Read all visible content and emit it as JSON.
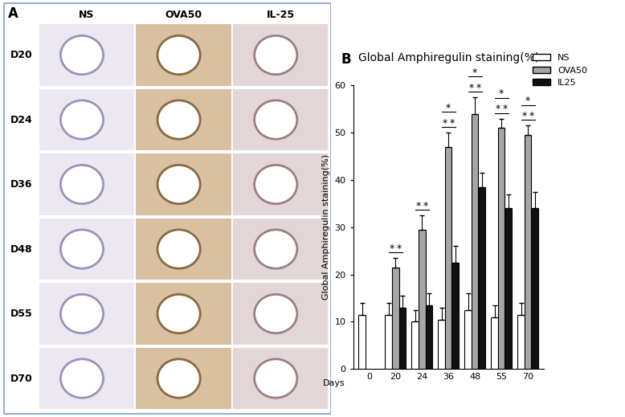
{
  "panel_a": {
    "label": "A",
    "columns": [
      "NS",
      "OVA50",
      "IL-25"
    ],
    "rows": [
      "D20",
      "D24",
      "D36",
      "D48",
      "D55",
      "D70"
    ]
  },
  "chart_data": {
    "type": "bar",
    "panel_label": "B",
    "title": "Global Amphiregulin staining(%)",
    "y_label": "Global Amphiregulin staining(%)",
    "x_label": "Days",
    "categories": [
      "0",
      "20",
      "24",
      "36",
      "48",
      "55",
      "70"
    ],
    "series": [
      {
        "name": "NS",
        "color": "#ffffff",
        "values": [
          11.5,
          11.5,
          10,
          10.5,
          12.5,
          11,
          11.5
        ],
        "errors": [
          2.5,
          2.5,
          2.5,
          2.5,
          3.5,
          2.5,
          2.5
        ]
      },
      {
        "name": "OVA50",
        "color": "#a6a6a6",
        "values": [
          null,
          21.5,
          29.5,
          47,
          54,
          51,
          49.5
        ],
        "errors": [
          null,
          2,
          3,
          3,
          3.5,
          2,
          2
        ]
      },
      {
        "name": "IL25",
        "color": "#111111",
        "values": [
          null,
          13,
          13.5,
          22.5,
          38.5,
          34,
          34
        ],
        "errors": [
          null,
          2.5,
          2.5,
          3.5,
          3,
          3,
          3.5
        ]
      }
    ],
    "annotations": [
      {
        "text": "*",
        "category": "20",
        "between": [
          "NS",
          "OVA50"
        ]
      },
      {
        "text": "*",
        "category": "20",
        "between": [
          "OVA50",
          "IL25"
        ]
      },
      {
        "text": "*",
        "category": "24",
        "between": [
          "NS",
          "OVA50"
        ]
      },
      {
        "text": "*",
        "category": "24",
        "between": [
          "OVA50",
          "IL25"
        ]
      },
      {
        "text": "*",
        "category": "36",
        "between": [
          "NS",
          "OVA50"
        ]
      },
      {
        "text": "*",
        "category": "36",
        "between": [
          "OVA50",
          "IL25"
        ]
      },
      {
        "text": "*",
        "category": "36",
        "between": [
          "NS",
          "IL25"
        ]
      },
      {
        "text": "*",
        "category": "48",
        "between": [
          "NS",
          "OVA50"
        ]
      },
      {
        "text": "*",
        "category": "48",
        "between": [
          "OVA50",
          "IL25"
        ]
      },
      {
        "text": "*",
        "category": "48",
        "between": [
          "NS",
          "IL25"
        ]
      },
      {
        "text": "*",
        "category": "55",
        "between": [
          "NS",
          "OVA50"
        ]
      },
      {
        "text": "*",
        "category": "55",
        "between": [
          "OVA50",
          "IL25"
        ]
      },
      {
        "text": "*",
        "category": "55",
        "between": [
          "NS",
          "IL25"
        ]
      },
      {
        "text": "*",
        "category": "70",
        "between": [
          "NS",
          "OVA50"
        ]
      },
      {
        "text": "*",
        "category": "70",
        "between": [
          "OVA50",
          "IL25"
        ]
      },
      {
        "text": "*",
        "category": "70",
        "between": [
          "NS",
          "IL25"
        ]
      }
    ],
    "ylim": [
      0,
      60
    ],
    "yticks": [
      0,
      10,
      20,
      30,
      40,
      50,
      60
    ],
    "legend": "upper right"
  }
}
